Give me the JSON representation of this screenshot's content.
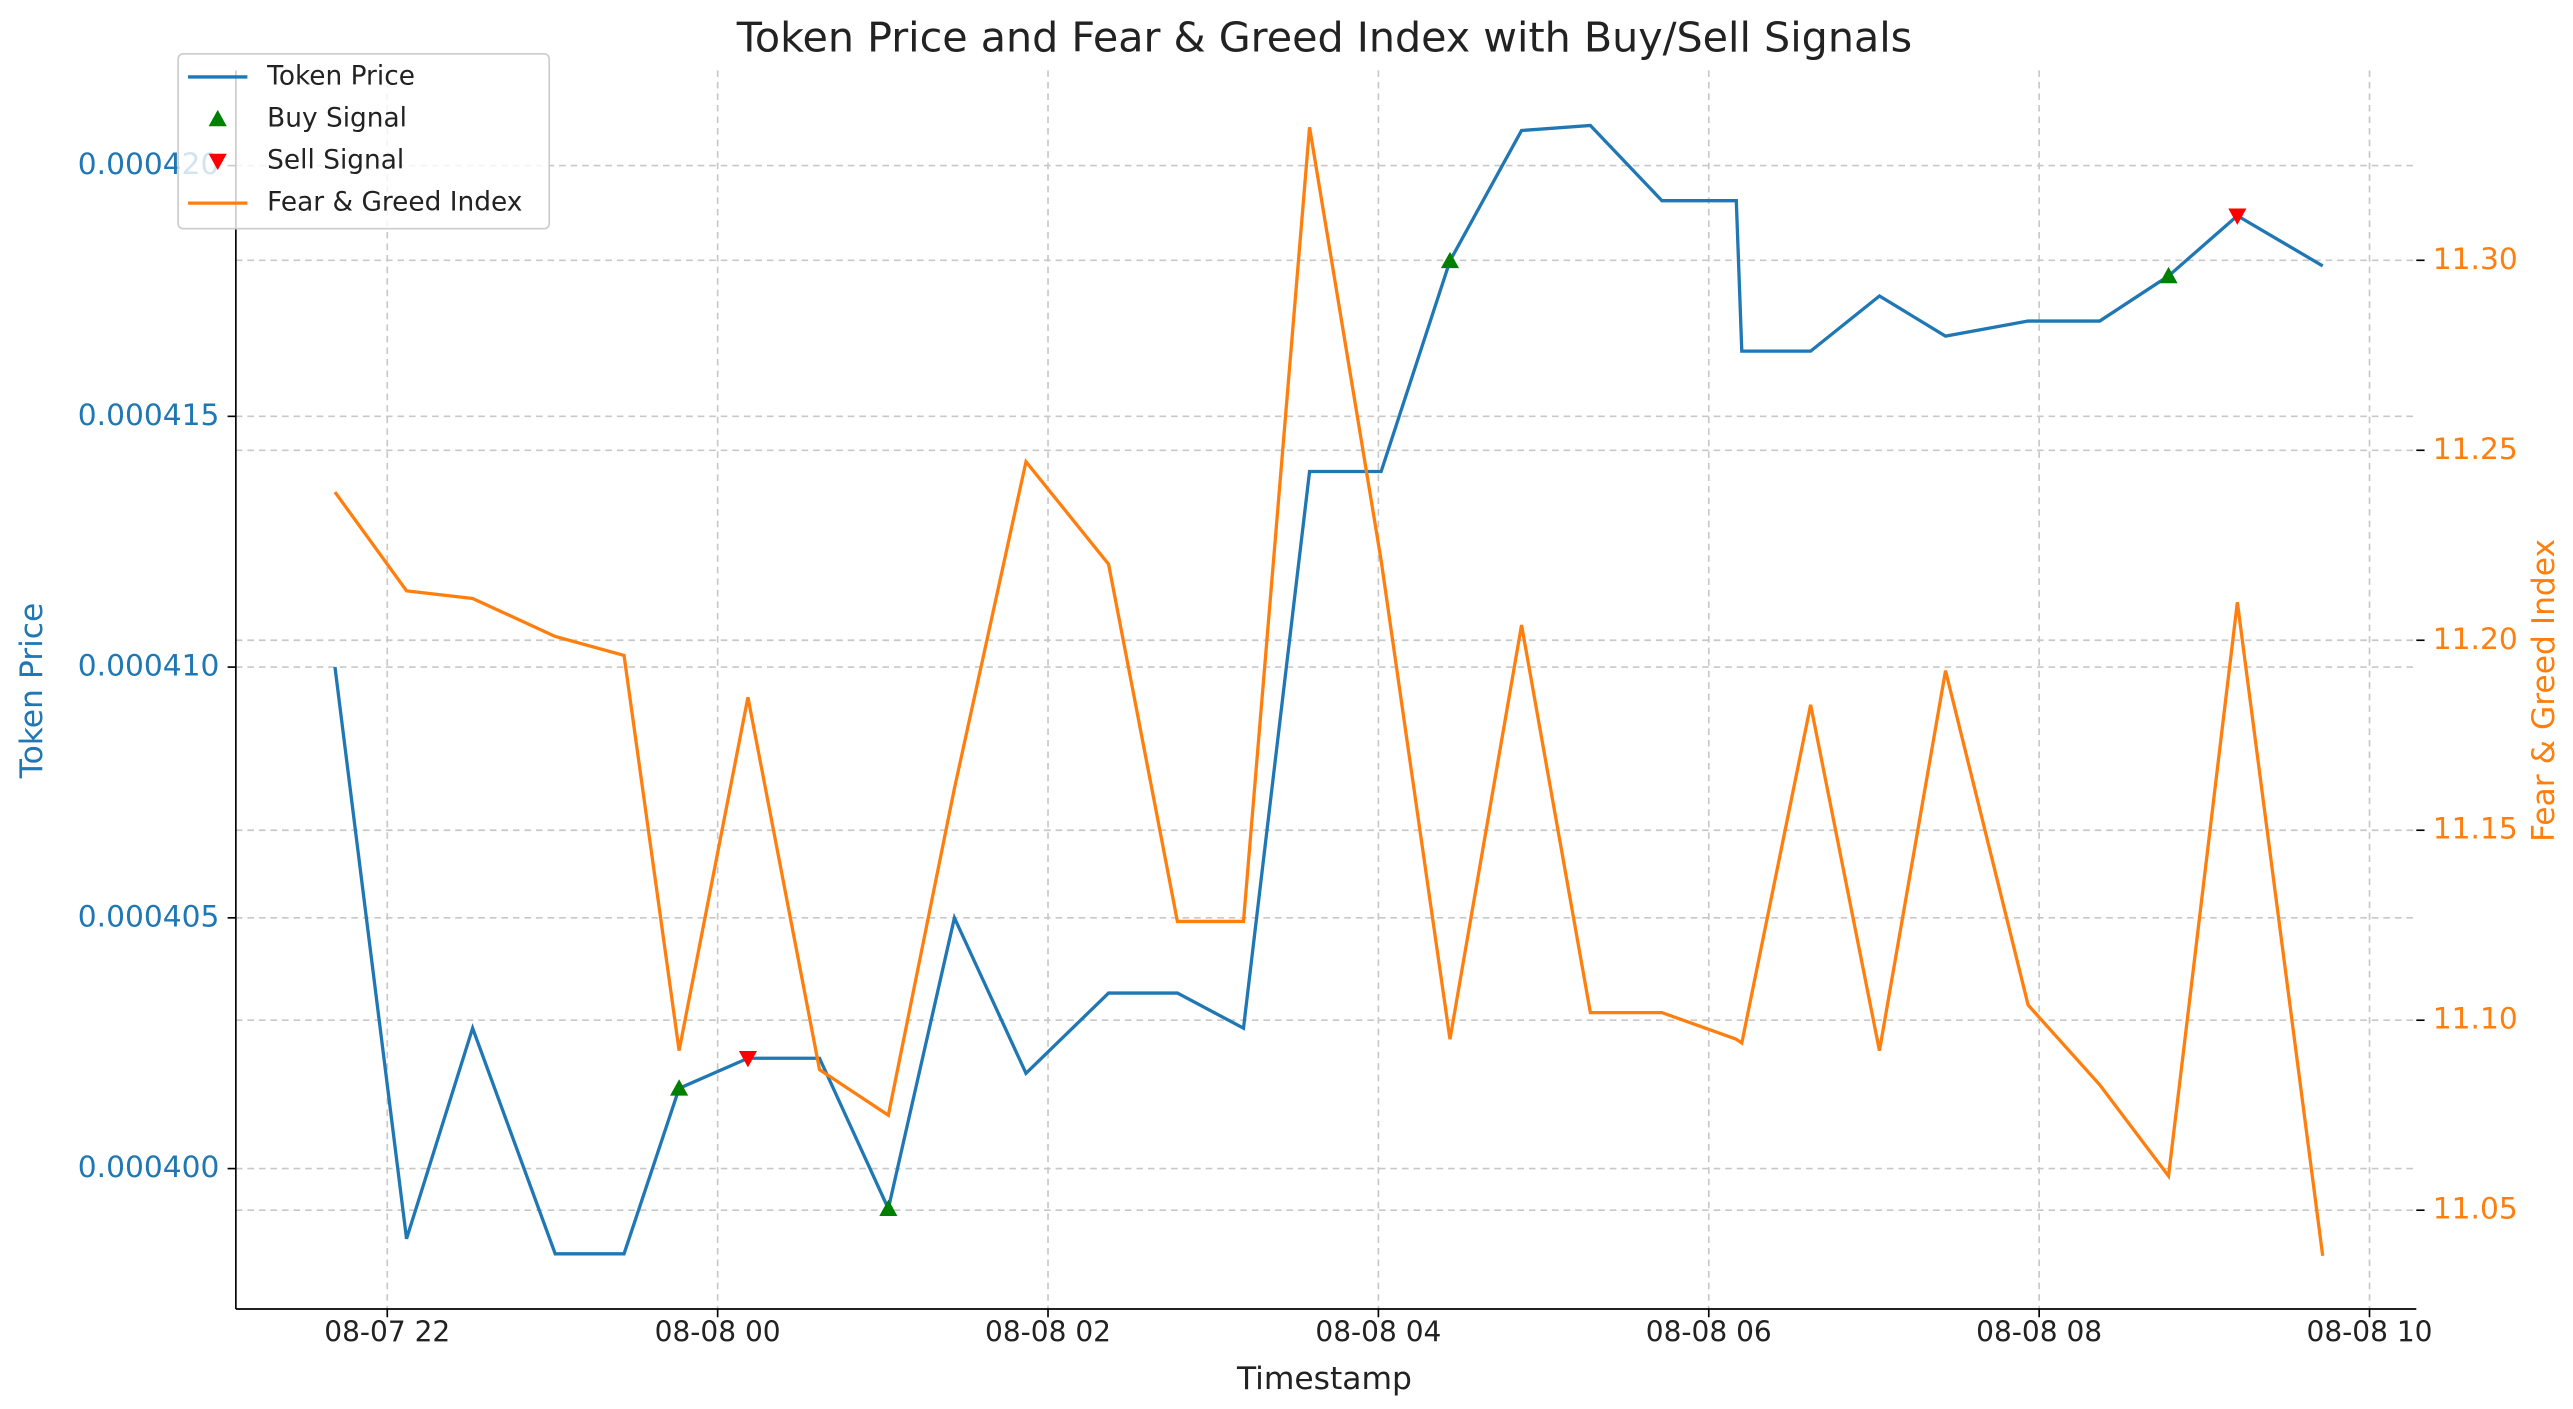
{
  "chart_data": {
    "type": "line",
    "title": "Token Price and Fear & Greed Index with Buy/Sell Signals",
    "x_label": "Timestamp",
    "y_label": "Token Price",
    "y2_label": "Fear & Greed Index",
    "x": [
      "08-07 21:41",
      "08-07 22:07",
      "08-07 22:31",
      "08-07 23:01",
      "08-07 23:26",
      "08-07 23:46",
      "08-08 00:11",
      "08-08 00:37",
      "08-08 01:02",
      "08-08 01:26",
      "08-08 01:52",
      "08-08 02:22",
      "08-08 02:47",
      "08-08 03:11",
      "08-08 03:35",
      "08-08 04:01",
      "08-08 04:26",
      "08-08 04:52",
      "08-08 05:17",
      "08-08 05:43",
      "08-08 06:10",
      "08-08 06:12",
      "08-08 06:37",
      "08-08 07:02",
      "08-08 07:26",
      "08-08 07:56",
      "08-08 08:22",
      "08-08 08:47",
      "08-08 09:12",
      "08-08 09:43"
    ],
    "series": [
      {
        "name": "Token Price",
        "color": "#1f77b4",
        "kind": "line",
        "values": [
          0.00041,
          0.0003986,
          0.0004028,
          0.0003983,
          0.0003983,
          0.0004016,
          0.0004022,
          0.0004022,
          0.0003992,
          0.000405,
          0.0004019,
          0.0004035,
          0.0004035,
          0.0004028,
          0.0004139,
          0.0004139,
          0.0004181,
          0.0004207,
          0.0004208,
          0.0004193,
          0.0004193,
          0.0004163,
          0.0004163,
          0.0004174,
          0.0004166,
          0.0004169,
          0.0004169,
          0.0004178,
          0.000419,
          0.000418
        ]
      },
      {
        "name": "Buy Signal",
        "color": "#008000",
        "kind": "marker",
        "marker": "up",
        "values": [
          null,
          null,
          null,
          null,
          null,
          0.0004016,
          null,
          null,
          0.0003992,
          null,
          null,
          null,
          null,
          null,
          null,
          null,
          0.0004181,
          null,
          null,
          null,
          null,
          null,
          null,
          null,
          null,
          null,
          null,
          0.0004178,
          null,
          null
        ]
      },
      {
        "name": "Sell Signal",
        "color": "#ff0000",
        "kind": "marker",
        "marker": "down",
        "values": [
          null,
          null,
          null,
          null,
          null,
          null,
          0.0004022,
          null,
          null,
          null,
          null,
          null,
          null,
          null,
          null,
          null,
          null,
          null,
          null,
          null,
          null,
          null,
          null,
          null,
          null,
          null,
          null,
          null,
          0.000419,
          null
        ]
      },
      {
        "name": "Fear & Greed Index",
        "color": "#ff7f0e",
        "kind": "line",
        "axis": "y2",
        "values": [
          11.239,
          11.213,
          11.211,
          11.201,
          11.196,
          11.092,
          11.185,
          11.087,
          11.075,
          11.161,
          11.247,
          11.22,
          11.126,
          11.126,
          11.335,
          11.221,
          11.095,
          11.204,
          11.102,
          11.102,
          11.095,
          11.094,
          11.183,
          11.092,
          11.192,
          11.104,
          11.083,
          11.059,
          11.21,
          11.038
        ]
      }
    ],
    "xlim": [
      "08-07 21:05",
      "08-08 10:17"
    ],
    "xticks": [
      "08-07 22",
      "08-08 00",
      "08-08 02",
      "08-08 04",
      "08-08 06",
      "08-08 08",
      "08-08 10"
    ],
    "ylim": [
      0.0003972,
      0.0004219
    ],
    "yticks": [
      {
        "value": 0.0004,
        "label": "0.000400"
      },
      0.000405,
      {
        "value": 0.00041,
        "label": "0.000410"
      },
      0.000415,
      {
        "value": 0.00042,
        "label": "0.000420"
      }
    ],
    "y2lim": [
      11.024,
      11.35
    ],
    "y2ticks": [
      11.05,
      {
        "value": 11.1,
        "label": "11.10"
      },
      11.15,
      {
        "value": 11.2,
        "label": "11.20"
      },
      11.25,
      {
        "value": 11.3,
        "label": "11.30"
      }
    ],
    "grid": true,
    "legend": "upper left"
  }
}
